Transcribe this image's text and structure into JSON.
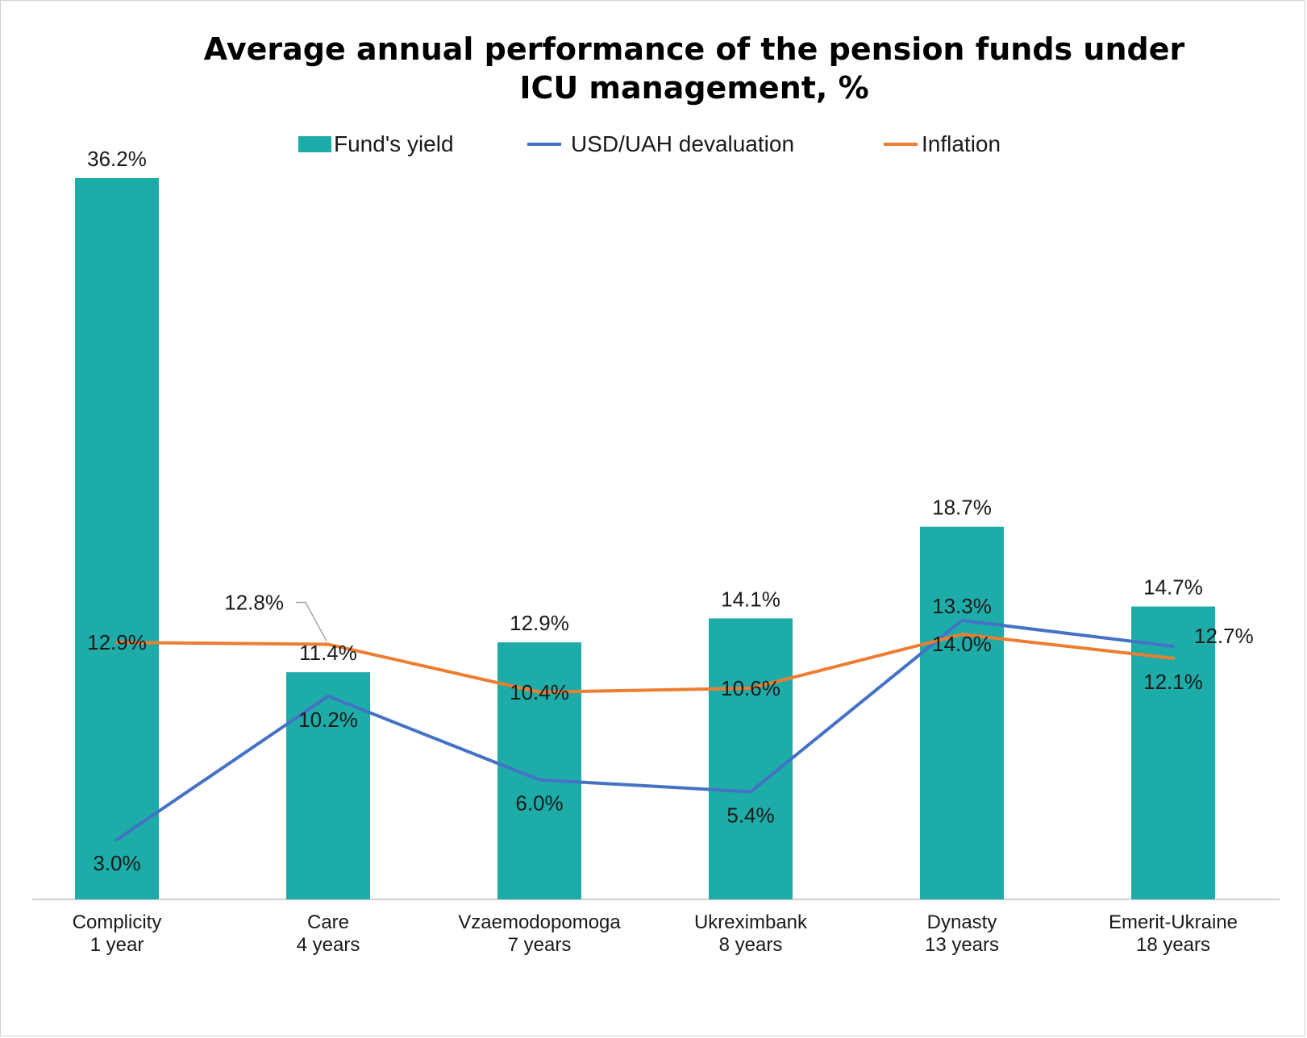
{
  "chart_data": {
    "type": "bar",
    "title_lines": [
      "Average annual performance of the pension funds under",
      "ICU management, %"
    ],
    "categories": [
      [
        "Complicity",
        "1 year"
      ],
      [
        "Care",
        "4 years"
      ],
      [
        "Vzaemodopomoga",
        "7 years"
      ],
      [
        "Ukreximbank",
        "8 years"
      ],
      [
        "Dynasty",
        "13 years"
      ],
      [
        "Emerit-Ukraine",
        "18 years"
      ]
    ],
    "series": [
      {
        "name": "Fund's yield",
        "kind": "bar",
        "color": "#1eaca9",
        "values": [
          36.2,
          11.4,
          12.9,
          14.1,
          18.7,
          14.7
        ],
        "labels": [
          "36.2%",
          "11.4%",
          "12.9%",
          "14.1%",
          "18.7%",
          "14.7%"
        ]
      },
      {
        "name": "USD/UAH devaluation",
        "kind": "line",
        "color": "#4472c4",
        "values": [
          3.0,
          10.2,
          6.0,
          5.4,
          14.0,
          12.7
        ],
        "labels": [
          "3.0%",
          "10.2%",
          "6.0%",
          "5.4%",
          "14.0%",
          "12.7%"
        ]
      },
      {
        "name": "Inflation",
        "kind": "line",
        "color": "#ed7d31",
        "values": [
          12.9,
          12.8,
          10.4,
          10.6,
          13.3,
          12.1
        ],
        "labels": [
          "12.9%",
          "12.8%",
          "10.4%",
          "10.6%",
          "13.3%",
          "12.1%"
        ]
      }
    ],
    "ylim": [
      0,
      37
    ],
    "grid": false,
    "legend_position": "top"
  }
}
